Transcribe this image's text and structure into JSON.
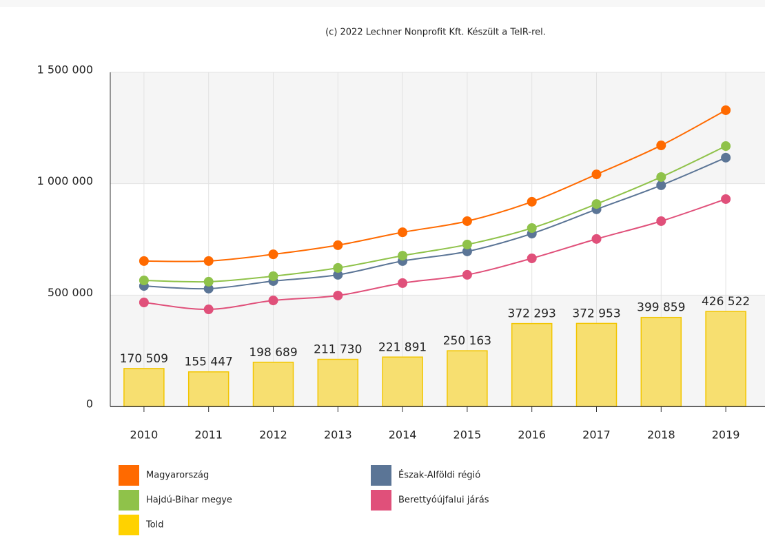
{
  "chart_data": {
    "type": "combo",
    "subtitle": "(c) 2022 Lechner Nonprofit Kft. Készült a TeIR-rel.",
    "categories": [
      "2010",
      "2011",
      "2012",
      "2013",
      "2014",
      "2015",
      "2016",
      "2017",
      "2018",
      "2019"
    ],
    "ylim": [
      0,
      1500000
    ],
    "yticks": [
      0,
      {
        "value": 500000,
        "label": "500 000"
      },
      {
        "value": 1000000,
        "label": "1 000 000"
      },
      {
        "value": 1500000,
        "label": "1 500 000"
      }
    ],
    "grid": true,
    "series": [
      {
        "name": "Magyarország",
        "type": "line",
        "color": "#ff6a00",
        "values": [
          653000,
          653000,
          683000,
          724000,
          782000,
          832000,
          919000,
          1042000,
          1172000,
          1330000
        ]
      },
      {
        "name": "Észak-Alföldi régió",
        "type": "line",
        "color": "#5b7596",
        "values": [
          541000,
          529000,
          563000,
          591000,
          653000,
          696000,
          776000,
          885000,
          993000,
          1117000
        ]
      },
      {
        "name": "Hajdú-Bihar megye",
        "type": "line",
        "color": "#8fc24a",
        "values": [
          566000,
          560000,
          585000,
          622000,
          677000,
          727000,
          801000,
          909000,
          1030000,
          1169000
        ]
      },
      {
        "name": "Berettyóújfalui járás",
        "type": "line",
        "color": "#e0507a",
        "values": [
          467000,
          436000,
          476000,
          498000,
          554000,
          591000,
          665000,
          752000,
          832000,
          931000
        ]
      },
      {
        "name": "Told",
        "type": "bar",
        "color": "#f7df70",
        "stroke": "#f2c500",
        "legend_color": "#ffd200",
        "values": [
          170509,
          155447,
          198689,
          211730,
          221891,
          250163,
          372293,
          372953,
          399859,
          426522
        ],
        "value_labels": [
          "170 509",
          "155 447",
          "198 689",
          "211 730",
          "221 891",
          "250 163",
          "372 293",
          "372 953",
          "399 859",
          "426 522"
        ]
      }
    ]
  }
}
